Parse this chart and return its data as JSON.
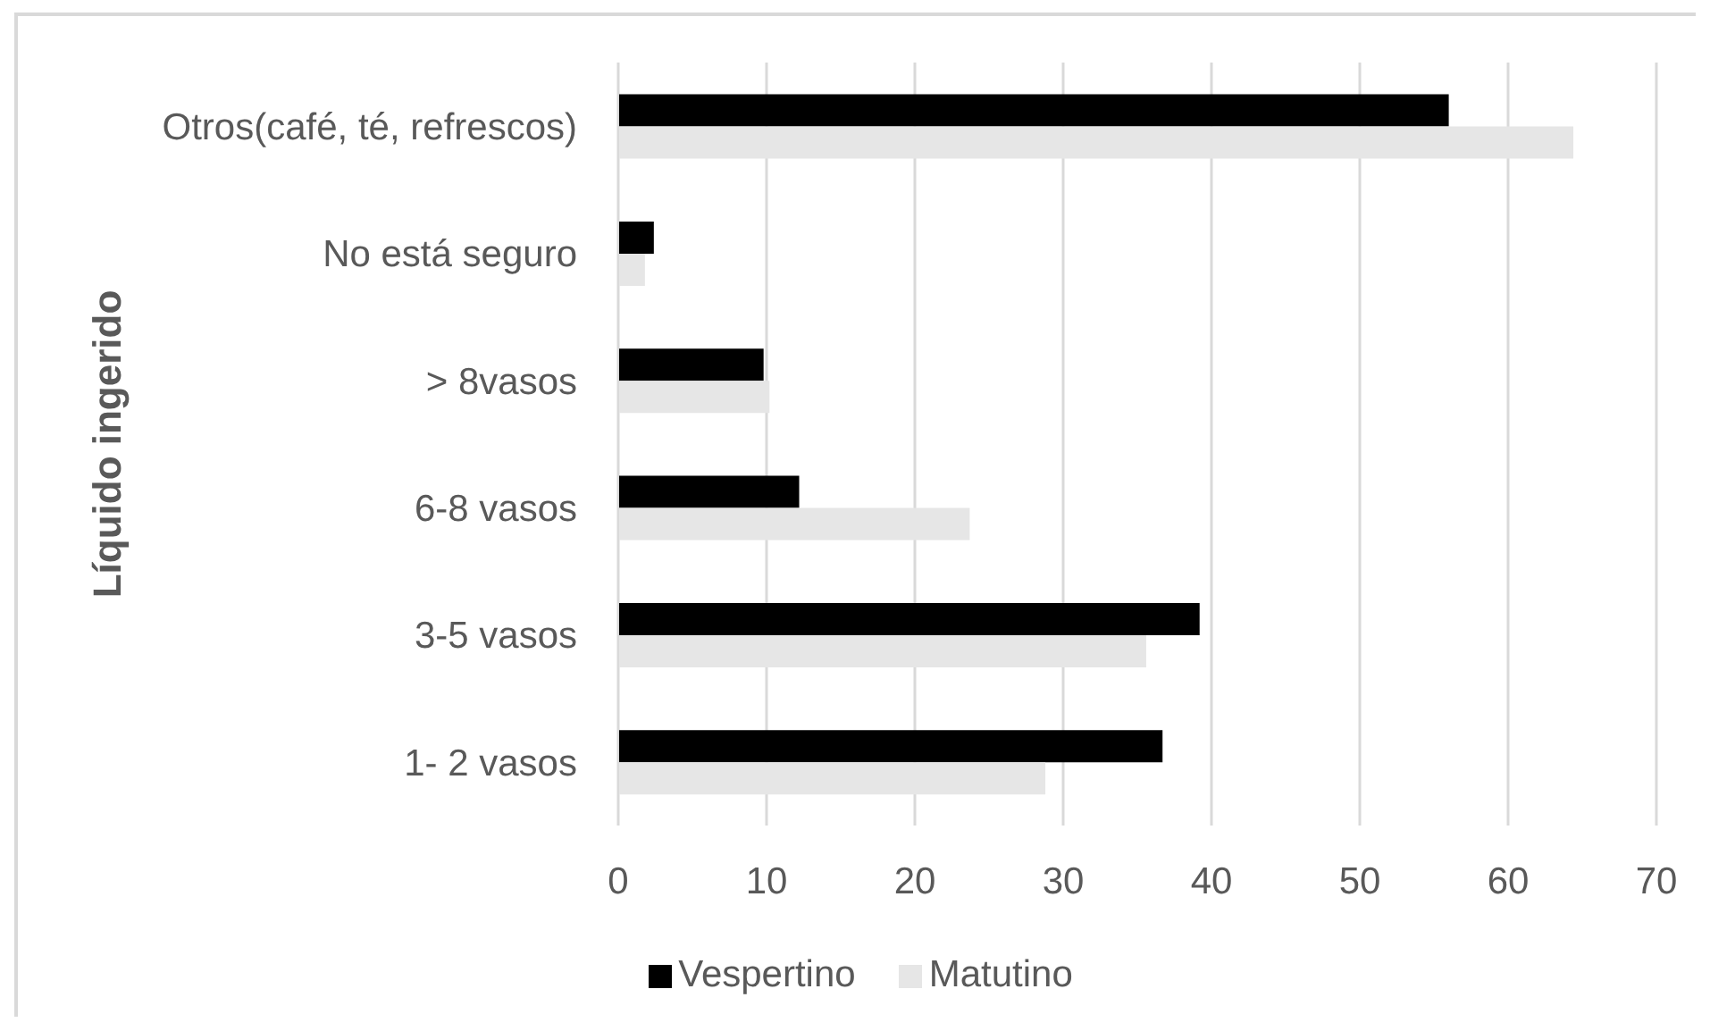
{
  "chart_data": {
    "type": "bar",
    "orientation": "horizontal",
    "ylabel": "Líquido ingerido",
    "categories": [
      "Otros(café, té, refrescos)",
      "No está seguro",
      "> 8vasos",
      "6-8 vasos",
      "3-5 vasos",
      "1- 2 vasos"
    ],
    "series": [
      {
        "name": "Vespertino",
        "color": "#000000",
        "values": [
          56.0,
          2.4,
          9.8,
          12.2,
          39.2,
          36.7
        ]
      },
      {
        "name": "Matutino",
        "color": "#e6e6e6",
        "values": [
          64.4,
          1.8,
          10.2,
          23.7,
          35.6,
          28.8
        ]
      }
    ],
    "xlim": [
      0,
      70
    ],
    "xticks": [
      0,
      10,
      20,
      30,
      40,
      50,
      60,
      70
    ],
    "grid": "x",
    "legend": "bottom"
  }
}
